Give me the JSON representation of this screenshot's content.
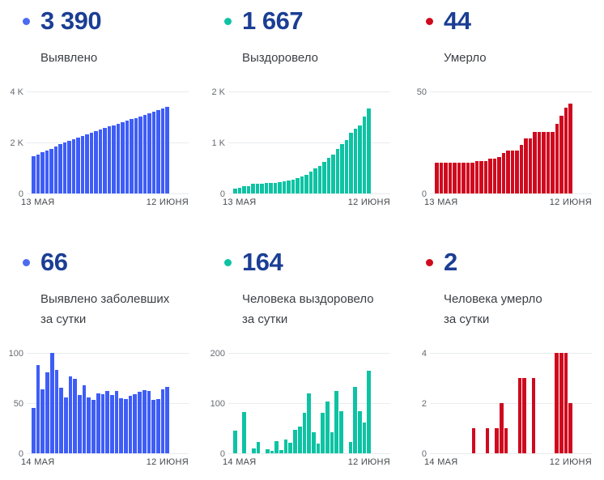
{
  "theme": {
    "background": "#ffffff",
    "value_color": "#1b3e94",
    "label_color": "#3a3f45",
    "ytick_color": "#666a70",
    "xtick_color": "#45494e",
    "grid_color": "#e9ebee",
    "blue": "#3e5df7",
    "green": "#0dc3a3",
    "red": "#d00a1e"
  },
  "panels": [
    {
      "value": "3 390",
      "label_lines": [
        "Выявлено"
      ],
      "dot_color": "#4c6bf2"
    },
    {
      "value": "1 667",
      "label_lines": [
        "Выздоровело"
      ],
      "dot_color": "#0dc3a3"
    },
    {
      "value": "44",
      "label_lines": [
        "Умерло"
      ],
      "dot_color": "#d00a1e"
    },
    {
      "value": "66",
      "label_lines": [
        "Выявлено заболевших",
        "за сутки"
      ],
      "dot_color": "#4c6bf2"
    },
    {
      "value": "164",
      "label_lines": [
        "Человека выздоровело",
        "за сутки"
      ],
      "dot_color": "#0dc3a3"
    },
    {
      "value": "2",
      "label_lines": [
        "Человека умерло",
        "за сутки"
      ],
      "dot_color": "#d00a1e"
    }
  ],
  "chart_data": [
    {
      "type": "bar",
      "title": "Выявлено",
      "color": "#3e5df7",
      "ylim": [
        0,
        4000
      ],
      "yticks": [
        {
          "pos": 0,
          "label": "4 K"
        },
        {
          "pos": 50,
          "label": "2 K"
        },
        {
          "pos": 100,
          "label": "0"
        }
      ],
      "x_start": "13 МАЯ",
      "x_end": "12 ИЮНЯ",
      "grid": "horizontal",
      "values": [
        1473,
        1518,
        1606,
        1670,
        1751,
        1851,
        1934,
        1999,
        2055,
        2132,
        2206,
        2264,
        2332,
        2388,
        2441,
        2501,
        2560,
        2622,
        2680,
        2742,
        2797,
        2851,
        2908,
        2967,
        3028,
        3091,
        3153,
        3206,
        3260,
        3324,
        3390
      ]
    },
    {
      "type": "bar",
      "title": "Выздоровело",
      "color": "#0dc3a3",
      "ylim": [
        0,
        2000
      ],
      "yticks": [
        {
          "pos": 0,
          "label": "2 K"
        },
        {
          "pos": 50,
          "label": "1 K"
        },
        {
          "pos": 100,
          "label": "0"
        }
      ],
      "x_start": "13 МАЯ",
      "x_end": "12 ИЮНЯ",
      "grid": "horizontal",
      "values": [
        96,
        104,
        142,
        148,
        188,
        190,
        194,
        200,
        206,
        212,
        220,
        240,
        256,
        272,
        296,
        330,
        372,
        430,
        490,
        545,
        620,
        700,
        764,
        870,
        962,
        1052,
        1188,
        1270,
        1334,
        1503,
        1667
      ]
    },
    {
      "type": "bar",
      "title": "Умерло",
      "color": "#d00a1e",
      "ylim": [
        0,
        50
      ],
      "yticks": [
        {
          "pos": 0,
          "label": "50"
        },
        {
          "pos": 100,
          "label": "0"
        }
      ],
      "x_start": "13 МАЯ",
      "x_end": "12 ИЮНЯ",
      "grid": "horizontal",
      "values": [
        15,
        15,
        15,
        15,
        15,
        15,
        15,
        15,
        15,
        16,
        16,
        16,
        17,
        17,
        18,
        20,
        21,
        21,
        21,
        24,
        27,
        27,
        30,
        30,
        30,
        30,
        30,
        34,
        38,
        42,
        44
      ]
    },
    {
      "type": "bar",
      "title": "Выявлено заболевших за сутки",
      "color": "#3e5df7",
      "ylim": [
        0,
        100
      ],
      "yticks": [
        {
          "pos": 0,
          "label": "100"
        },
        {
          "pos": 50,
          "label": "50"
        },
        {
          "pos": 100,
          "label": "0"
        }
      ],
      "x_start": "14 МАЯ",
      "x_end": "12 ИЮНЯ",
      "grid": "horizontal",
      "values": [
        45,
        88,
        64,
        81,
        100,
        83,
        65,
        56,
        77,
        74,
        58,
        68,
        56,
        53,
        60,
        59,
        62,
        58,
        62,
        55,
        54,
        57,
        59,
        61,
        63,
        62,
        53,
        54,
        64,
        66
      ]
    },
    {
      "type": "bar",
      "title": "Человека выздоровело за сутки",
      "color": "#0dc3a3",
      "ylim": [
        0,
        200
      ],
      "yticks": [
        {
          "pos": 0,
          "label": "200"
        },
        {
          "pos": 50,
          "label": "100"
        },
        {
          "pos": 100,
          "label": "0"
        }
      ],
      "x_start": "14 МАЯ",
      "x_end": "12 ИЮНЯ",
      "grid": "horizontal",
      "values": [
        45,
        0,
        83,
        0,
        9,
        22,
        0,
        8,
        5,
        24,
        7,
        27,
        21,
        46,
        54,
        80,
        119,
        42,
        19,
        81,
        103,
        42,
        124,
        84,
        0,
        22,
        133,
        84,
        61,
        164
      ]
    },
    {
      "type": "bar",
      "title": "Человека умерло за сутки",
      "color": "#d00a1e",
      "ylim": [
        0,
        4
      ],
      "yticks": [
        {
          "pos": 0,
          "label": "4"
        },
        {
          "pos": 50,
          "label": "2"
        },
        {
          "pos": 100,
          "label": "0"
        }
      ],
      "x_start": "14 МАЯ",
      "x_end": "12 ИЮНЯ",
      "grid": "horizontal",
      "values": [
        0,
        0,
        0,
        0,
        0,
        0,
        0,
        0,
        1,
        0,
        0,
        1,
        0,
        1,
        2,
        1,
        0,
        0,
        3,
        3,
        0,
        3,
        0,
        0,
        0,
        0,
        4,
        4,
        4,
        2
      ]
    }
  ]
}
